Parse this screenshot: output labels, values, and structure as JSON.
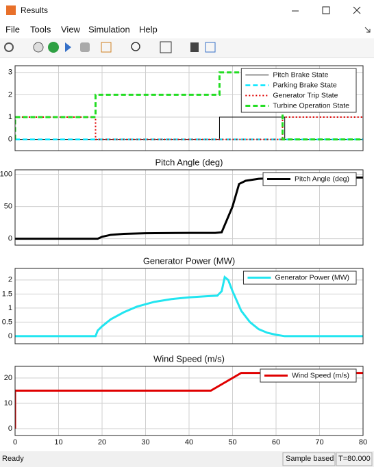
{
  "window": {
    "title": "Results",
    "menu": [
      "File",
      "Tools",
      "View",
      "Simulation",
      "Help"
    ],
    "status": {
      "left": "Ready",
      "mode": "Sample based",
      "time": "T=80.000"
    }
  },
  "chart_data": [
    {
      "type": "line",
      "xlim": [
        0,
        80
      ],
      "xticks": [
        0,
        10,
        20,
        30,
        40,
        50,
        60,
        70,
        80
      ],
      "show_xtick_labels": false,
      "ylim": [
        -0.5,
        3.3
      ],
      "yticks": [
        0,
        1,
        2,
        3
      ],
      "grid": true,
      "legend": "upper right",
      "series": [
        {
          "name": "Pitch Brake State",
          "color": "#000000",
          "style": "solid",
          "width": 1,
          "x": [
            0,
            47,
            47,
            62,
            62,
            80
          ],
          "values": [
            0,
            0,
            1,
            1,
            0,
            0
          ]
        },
        {
          "name": "Parking Brake State",
          "color": "#00e5ff",
          "style": "dashed",
          "width": 2.5,
          "x": [
            0,
            80
          ],
          "values": [
            0,
            0
          ]
        },
        {
          "name": "Generator Trip State",
          "color": "#e00000",
          "style": "dotted",
          "width": 2,
          "x": [
            0,
            18.5,
            18.5,
            61.5,
            61.5,
            80
          ],
          "values": [
            1,
            1,
            0,
            0,
            1,
            1
          ]
        },
        {
          "name": "Turbine Operation State",
          "color": "#22dd22",
          "style": "dashed",
          "width": 3,
          "x": [
            0,
            0,
            18.5,
            18.5,
            47,
            47,
            61.5,
            61.5,
            80
          ],
          "values": [
            0,
            1,
            1,
            2,
            2,
            3,
            3,
            0,
            0
          ]
        }
      ]
    },
    {
      "type": "line",
      "title": "Pitch Angle (deg)",
      "xlim": [
        0,
        80
      ],
      "xticks": [
        0,
        10,
        20,
        30,
        40,
        50,
        60,
        70,
        80
      ],
      "show_xtick_labels": false,
      "ylim": [
        -10,
        107
      ],
      "yticks": [
        0,
        50,
        100
      ],
      "grid": true,
      "legend": "upper right",
      "series": [
        {
          "name": "Pitch Angle (deg)",
          "color": "#000000",
          "style": "solid",
          "width": 3,
          "x": [
            0,
            19,
            20,
            22,
            25,
            30,
            40,
            46,
            47.5,
            50,
            51.5,
            53,
            56,
            60,
            65,
            80
          ],
          "values": [
            0,
            0,
            3,
            6,
            7.5,
            8.5,
            9,
            9,
            10,
            50,
            85,
            90,
            93,
            94.5,
            95,
            95
          ]
        }
      ]
    },
    {
      "type": "line",
      "title": "Generator Power (MW)",
      "xlim": [
        0,
        80
      ],
      "xticks": [
        0,
        10,
        20,
        30,
        40,
        50,
        60,
        70,
        80
      ],
      "show_xtick_labels": false,
      "ylim": [
        -0.27,
        2.41
      ],
      "yticks": [
        0,
        0.5,
        1,
        1.5,
        2
      ],
      "grid": true,
      "legend": "upper right",
      "series": [
        {
          "name": "Generator Power (MW)",
          "color": "#22e5f0",
          "style": "solid",
          "width": 3,
          "x": [
            0,
            18.5,
            19,
            20,
            22,
            25,
            28,
            32,
            36,
            40,
            44,
            46.5,
            47.5,
            48.2,
            49,
            50,
            52,
            54,
            56,
            58,
            60,
            62,
            65,
            80
          ],
          "values": [
            0,
            0,
            0.2,
            0.35,
            0.6,
            0.85,
            1.05,
            1.22,
            1.32,
            1.38,
            1.42,
            1.44,
            1.6,
            2.1,
            2.0,
            1.6,
            0.9,
            0.5,
            0.25,
            0.12,
            0.05,
            0,
            0,
            0
          ]
        }
      ]
    },
    {
      "type": "line",
      "title": "Wind Speed (m/s)",
      "xlim": [
        0,
        80
      ],
      "xticks": [
        0,
        10,
        20,
        30,
        40,
        50,
        60,
        70,
        80
      ],
      "show_xtick_labels": true,
      "ylim": [
        -2.7,
        24.6
      ],
      "yticks": [
        0,
        10,
        20
      ],
      "grid": true,
      "legend": "upper right",
      "series": [
        {
          "name": "Wind Speed (m/s)",
          "color": "#e00000",
          "style": "solid",
          "width": 3,
          "x": [
            0,
            0,
            45,
            52,
            80
          ],
          "values": [
            0,
            15,
            15,
            22,
            22
          ]
        }
      ]
    }
  ]
}
